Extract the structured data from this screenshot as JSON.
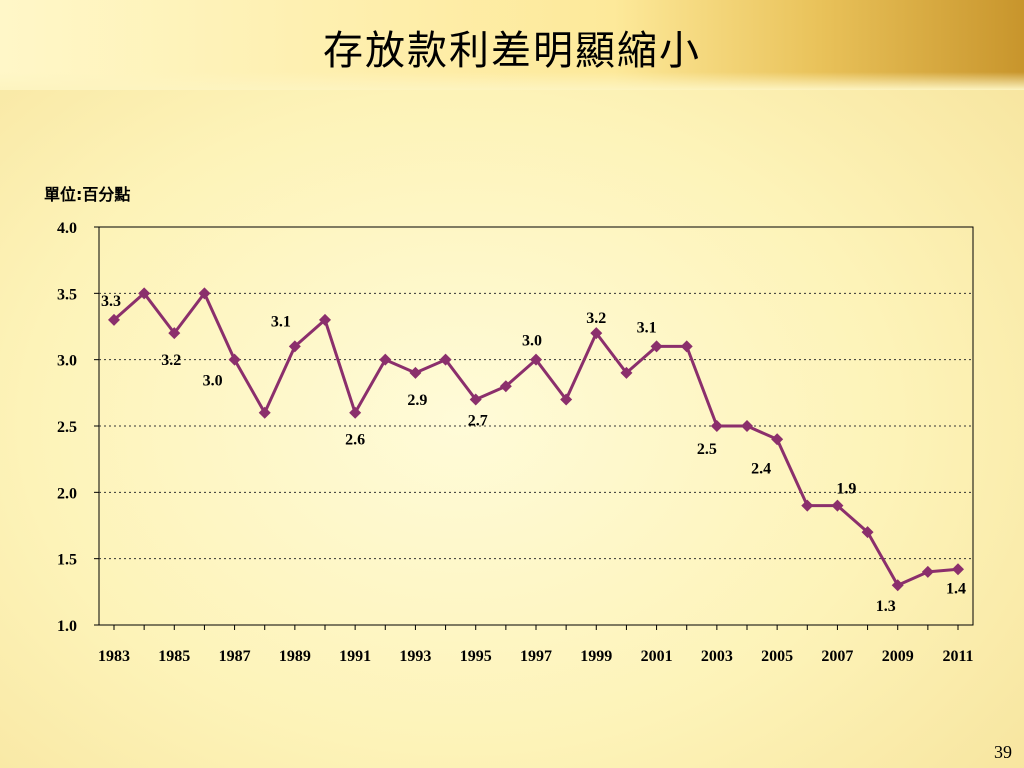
{
  "slide": {
    "title": "存放款利差明顯縮小",
    "page_number": "39"
  },
  "chart_data": {
    "type": "line",
    "title": "存放款利差明顯縮小",
    "unit_label": "單位:百分點",
    "xlabel": "",
    "ylabel": "",
    "x": [
      1983,
      1984,
      1985,
      1986,
      1987,
      1988,
      1989,
      1990,
      1991,
      1992,
      1993,
      1994,
      1995,
      1996,
      1997,
      1998,
      1999,
      2000,
      2001,
      2002,
      2003,
      2004,
      2005,
      2006,
      2007,
      2008,
      2009,
      2010,
      2011
    ],
    "x_tick_labels": [
      "1983",
      "1985",
      "1987",
      "1989",
      "1991",
      "1993",
      "1995",
      "1997",
      "1999",
      "2001",
      "2003",
      "2005",
      "2007",
      "2009",
      "2011"
    ],
    "y_tick_labels": [
      "4.0",
      "3.5",
      "3.0",
      "2.5",
      "2.0",
      "1.5",
      "1.0"
    ],
    "ylim": [
      1.0,
      4.0
    ],
    "grid": "horizontal dotted",
    "legend": "none",
    "line_color": "#8b2f6c",
    "series": [
      {
        "values": [
          3.3,
          3.5,
          3.2,
          3.5,
          3.0,
          2.6,
          3.1,
          3.3,
          2.6,
          3.0,
          2.9,
          3.0,
          2.7,
          2.8,
          3.0,
          2.7,
          3.2,
          2.9,
          3.1,
          3.1,
          2.5,
          2.5,
          2.4,
          1.9,
          1.9,
          1.7,
          1.3,
          1.4,
          1.42
        ]
      }
    ],
    "data_labels": [
      {
        "x": 1983,
        "text": "3.3"
      },
      {
        "x": 1985,
        "text": "3.2"
      },
      {
        "x": 1987,
        "text": "3.0"
      },
      {
        "x": 1989,
        "text": "3.1"
      },
      {
        "x": 1991,
        "text": "2.6"
      },
      {
        "x": 1993,
        "text": "2.9"
      },
      {
        "x": 1995,
        "text": "2.7"
      },
      {
        "x": 1997,
        "text": "3.0"
      },
      {
        "x": 1999,
        "text": "3.2"
      },
      {
        "x": 2001,
        "text": "3.1"
      },
      {
        "x": 2003,
        "text": "2.5"
      },
      {
        "x": 2005,
        "text": "2.4"
      },
      {
        "x": 2007,
        "text": "1.9"
      },
      {
        "x": 2009,
        "text": "1.3"
      },
      {
        "x": 2011,
        "text": "1.4"
      }
    ]
  }
}
